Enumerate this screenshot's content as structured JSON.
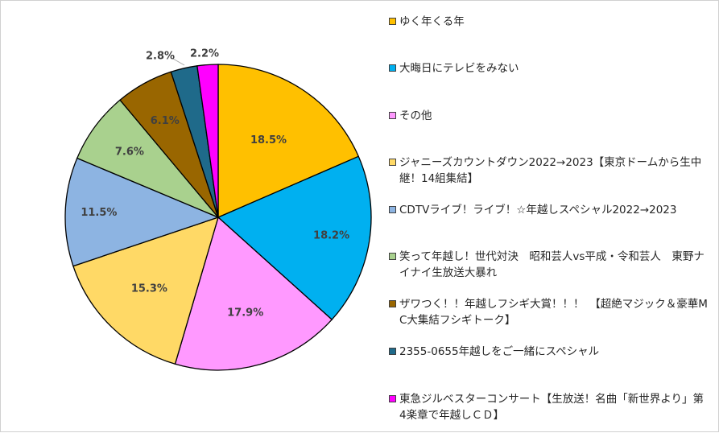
{
  "chart_data": {
    "type": "pie",
    "title": "",
    "start": "top, clockwise",
    "slices": [
      {
        "label": "ゆく年くる年",
        "value": 18.5,
        "display": "18.5%",
        "color": "#FFC000"
      },
      {
        "label": "大晦日にテレビをみない",
        "value": 18.2,
        "display": "18.2%",
        "color": "#00B0F0"
      },
      {
        "label": "その他",
        "value": 17.9,
        "display": "17.9%",
        "color": "#FF99FF"
      },
      {
        "label": "ジャニーズカウントダウン2022→2023【東京ドームから生中継！14組集結】",
        "value": 15.3,
        "display": "15.3%",
        "color": "#FFD966"
      },
      {
        "label": "CDTVライブ！ライブ！☆年越しスペシャル2022→2023",
        "value": 11.5,
        "display": "11.5%",
        "color": "#8DB4E2"
      },
      {
        "label": "笑って年越し！世代対決　昭和芸人vs平成・令和芸人　東野ナイナイ生放送大暴れ",
        "value": 7.6,
        "display": "7.6%",
        "color": "#A9D18E"
      },
      {
        "label": "ザワつく！！年越しフシギ大賞！！！　【超絶マジック＆豪華MC大集結フシギトーク】",
        "value": 6.1,
        "display": "6.1%",
        "color": "#996600"
      },
      {
        "label": "2355-0655年越しをご一緒にスペシャル",
        "value": 2.8,
        "display": "2.8%",
        "color": "#1F6A8A"
      },
      {
        "label": "東急ジルベスターコンサート【生放送！名曲「新世界より」第4楽章で年越しＣＤ】",
        "value": 2.2,
        "display": "2.2%",
        "color": "#FF00FF"
      }
    ],
    "legend_position": "right",
    "slice_border_color": "#000000"
  }
}
